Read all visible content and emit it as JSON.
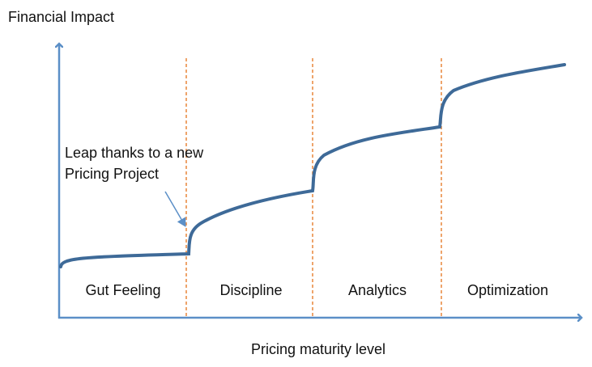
{
  "axes": {
    "y_label": "Financial Impact",
    "x_label": "Pricing maturity level"
  },
  "stages": [
    "Gut Feeling",
    "Discipline",
    "Analytics",
    "Optimization"
  ],
  "annotation": {
    "lines": [
      "Leap thanks to a new",
      "Pricing Project"
    ]
  }
}
